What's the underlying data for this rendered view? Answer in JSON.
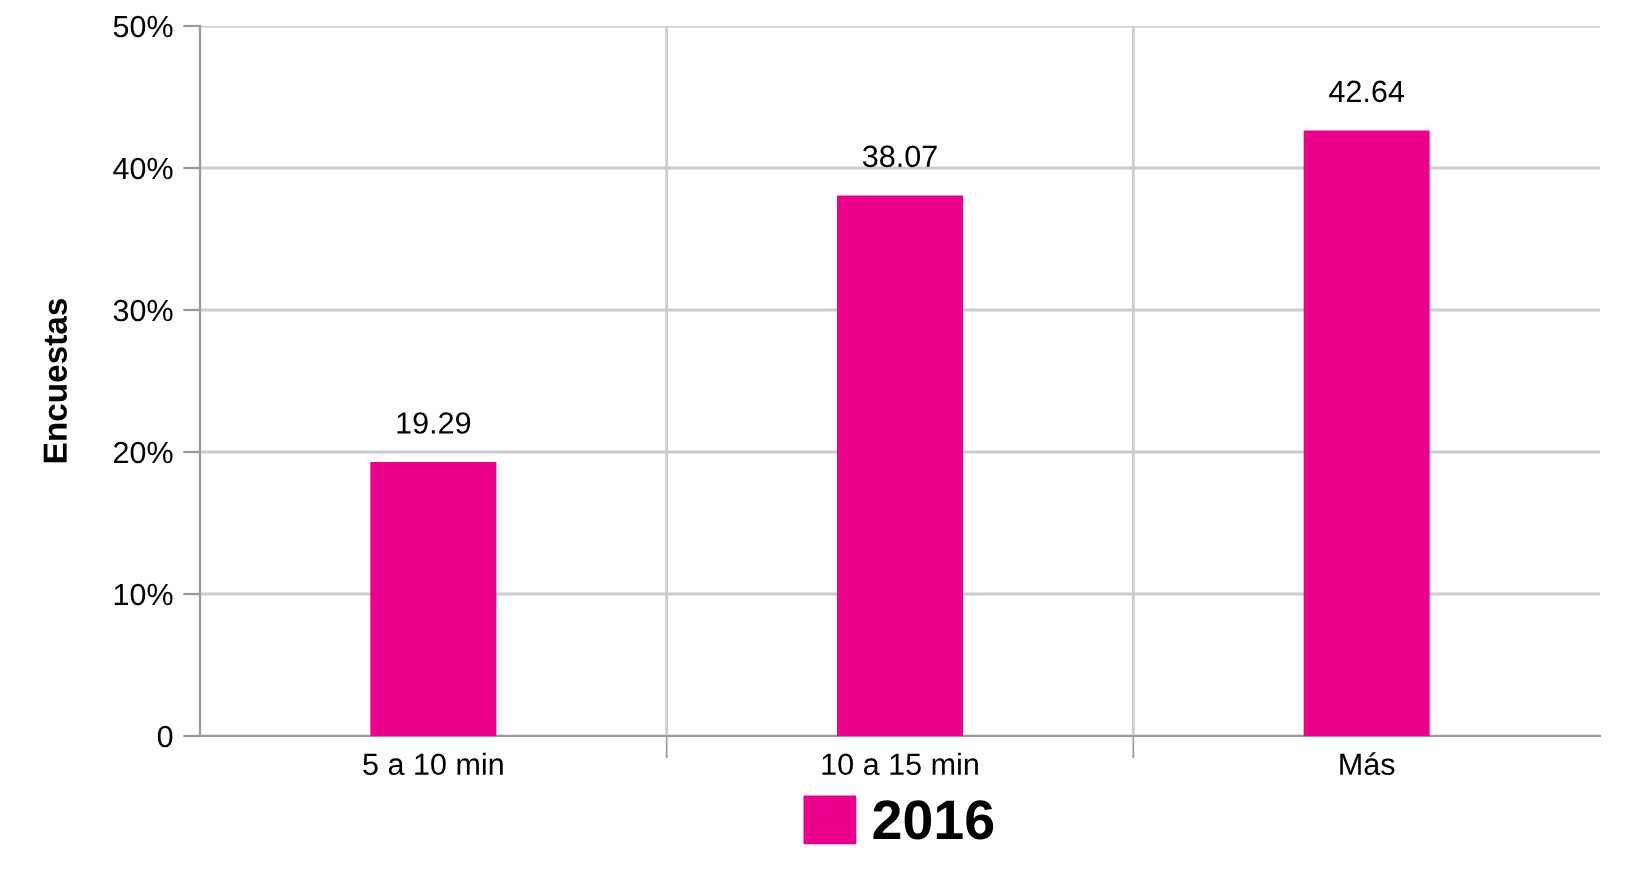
{
  "chart_data": {
    "type": "bar",
    "ylabel": "Encuestas",
    "categories": [
      "5 a 10 min",
      "10 a 15 min",
      "Más"
    ],
    "series": [
      {
        "name": "2016",
        "color": "#ec008c",
        "values": [
          19.29,
          38.07,
          42.64
        ]
      }
    ],
    "ylim": [
      0,
      50
    ],
    "yticks": [
      {
        "value": 0,
        "label": "0"
      },
      {
        "value": 10,
        "label": "10%"
      },
      {
        "value": 20,
        "label": "20%"
      },
      {
        "value": 30,
        "label": "30%"
      },
      {
        "value": 40,
        "label": "40%"
      },
      {
        "value": 50,
        "label": "50%"
      }
    ],
    "grid": true,
    "legend": "bottom",
    "data_labels": true
  }
}
